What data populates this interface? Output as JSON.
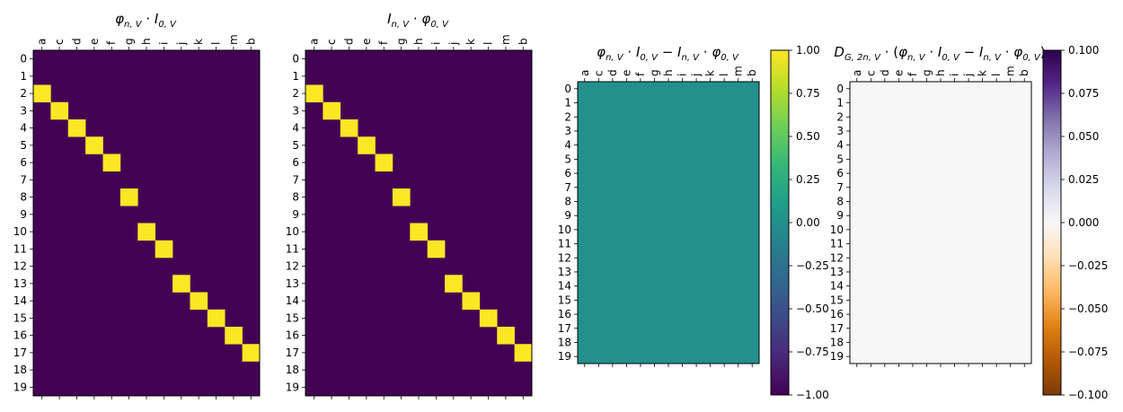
{
  "columns": [
    "a",
    "c",
    "d",
    "e",
    "f",
    "g",
    "h",
    "i",
    "j",
    "k",
    "l",
    "m",
    "b"
  ],
  "rows": [
    "0",
    "1",
    "2",
    "3",
    "4",
    "5",
    "6",
    "7",
    "8",
    "9",
    "10",
    "11",
    "12",
    "13",
    "14",
    "15",
    "16",
    "17",
    "18",
    "19"
  ],
  "colors": {
    "viridis": [
      "#440154",
      "#482878",
      "#3e4a89",
      "#31688e",
      "#26828e",
      "#1f9e89",
      "#35b779",
      "#6ece58",
      "#b5de2b",
      "#fde725"
    ],
    "puor": [
      "#7f3b08",
      "#b35806",
      "#e08214",
      "#fdb863",
      "#fee0b6",
      "#f7f7f7",
      "#d8daeb",
      "#b2abd2",
      "#8073ac",
      "#542788",
      "#2d004b"
    ]
  },
  "chart_data": [
    {
      "type": "heatmap",
      "title": "φ_{n,V} · I_{0,V}",
      "colormap": "viridis",
      "vmin": 0,
      "vmax": 1,
      "ones": [
        [
          2,
          0
        ],
        [
          3,
          1
        ],
        [
          4,
          2
        ],
        [
          5,
          3
        ],
        [
          6,
          4
        ],
        [
          8,
          5
        ],
        [
          10,
          6
        ],
        [
          11,
          7
        ],
        [
          13,
          8
        ],
        [
          14,
          9
        ],
        [
          15,
          10
        ],
        [
          16,
          11
        ],
        [
          17,
          12
        ]
      ],
      "fill": 0,
      "colorbar": null
    },
    {
      "type": "heatmap",
      "title": "I_{n,V} · φ_{0,V}",
      "colormap": "viridis",
      "vmin": 0,
      "vmax": 1,
      "ones": [
        [
          2,
          0
        ],
        [
          3,
          1
        ],
        [
          4,
          2
        ],
        [
          5,
          3
        ],
        [
          6,
          4
        ],
        [
          8,
          5
        ],
        [
          10,
          6
        ],
        [
          11,
          7
        ],
        [
          13,
          8
        ],
        [
          14,
          9
        ],
        [
          15,
          10
        ],
        [
          16,
          11
        ],
        [
          17,
          12
        ]
      ],
      "fill": 0,
      "colorbar": null
    },
    {
      "type": "heatmap",
      "title": "φ_{n,V} · I_{0,V} − I_{n,V} · φ_{0,V}",
      "colormap": "viridis",
      "vmin": -1,
      "vmax": 1,
      "ones": [],
      "fill": 0,
      "colorbar": {
        "ticks": [
          "1.00",
          "0.75",
          "0.50",
          "0.25",
          "0.00",
          "−0.25",
          "−0.50",
          "−0.75",
          "−1.00"
        ]
      }
    },
    {
      "type": "heatmap",
      "title": "D_{G,2n,V} · (φ_{n,V} · I_{0,V} − I_{n,V} · φ_{0,V})",
      "colormap": "PuOr",
      "vmin": -0.1,
      "vmax": 0.1,
      "ones": [],
      "fill": 0,
      "colorbar": {
        "ticks": [
          "0.100",
          "0.075",
          "0.050",
          "0.025",
          "0.000",
          "−0.025",
          "−0.050",
          "−0.075",
          "−0.100"
        ]
      }
    }
  ]
}
